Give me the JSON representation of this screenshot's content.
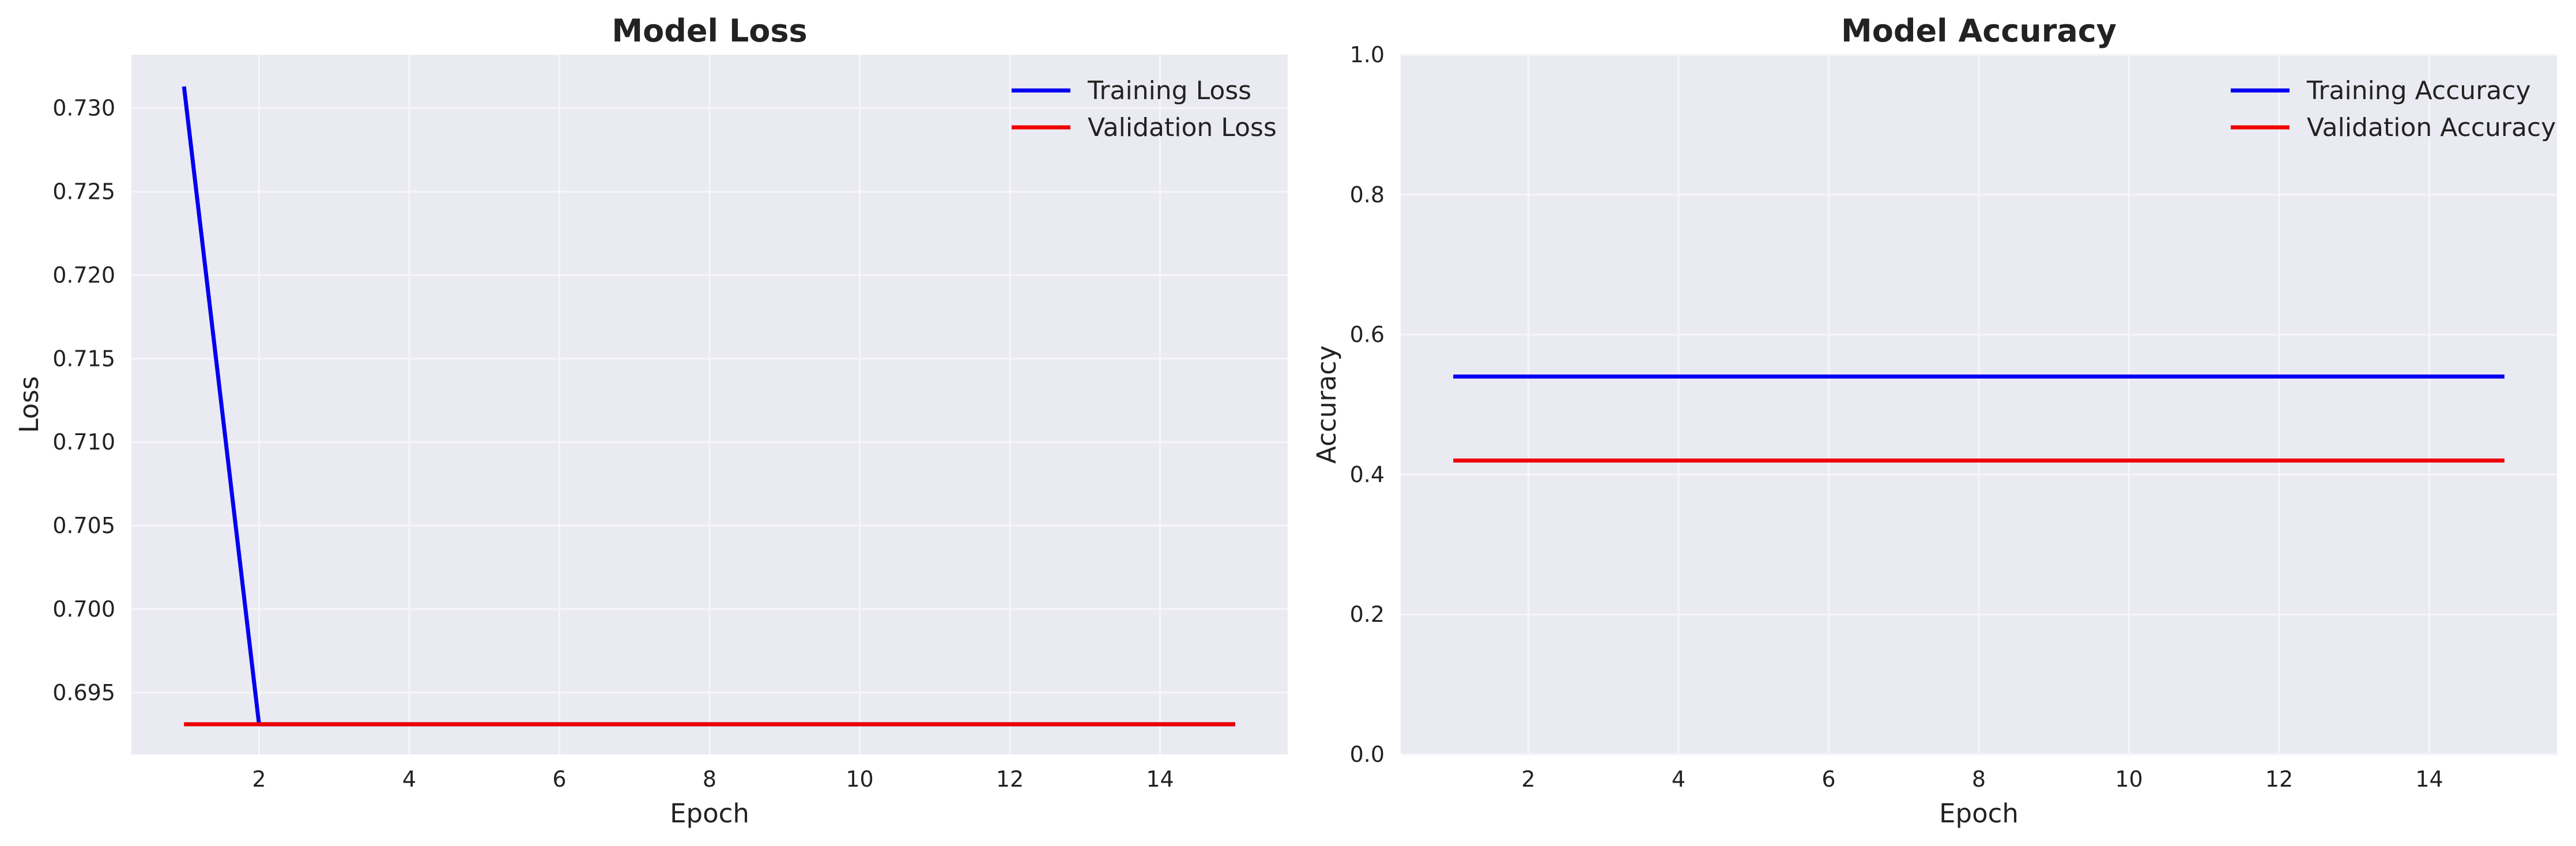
{
  "chart_data": [
    {
      "type": "line",
      "title": "Model Loss",
      "xlabel": "Epoch",
      "ylabel": "Loss",
      "x": [
        1,
        2,
        3,
        4,
        5,
        6,
        7,
        8,
        9,
        10,
        11,
        12,
        13,
        14,
        15
      ],
      "series": [
        {
          "name": "Training Loss",
          "color": "#0000ee",
          "values": [
            0.7313,
            0.6931,
            0.6931,
            0.6931,
            0.6931,
            0.6931,
            0.6931,
            0.6931,
            0.6931,
            0.6931,
            0.6931,
            0.6931,
            0.6931,
            0.6931,
            0.6931
          ]
        },
        {
          "name": "Validation Loss",
          "color": "#ee0000",
          "values": [
            0.6931,
            0.6931,
            0.6931,
            0.6931,
            0.6931,
            0.6931,
            0.6931,
            0.6931,
            0.6931,
            0.6931,
            0.6931,
            0.6931,
            0.6931,
            0.6931,
            0.6931
          ]
        }
      ],
      "xlim": [
        0.3,
        15.7
      ],
      "ylim": [
        0.6913,
        0.7332
      ],
      "xticks": [
        2,
        4,
        6,
        8,
        10,
        12,
        14
      ],
      "xtick_labels": [
        "2",
        "4",
        "6",
        "8",
        "10",
        "12",
        "14"
      ],
      "yticks": [
        0.695,
        0.7,
        0.705,
        0.71,
        0.715,
        0.72,
        0.725,
        0.73
      ],
      "ytick_labels": [
        "0.695",
        "0.700",
        "0.705",
        "0.710",
        "0.715",
        "0.720",
        "0.725",
        "0.730"
      ],
      "grid": true,
      "legend": "top-right"
    },
    {
      "type": "line",
      "title": "Model Accuracy",
      "xlabel": "Epoch",
      "ylabel": "Accuracy",
      "x": [
        1,
        2,
        3,
        4,
        5,
        6,
        7,
        8,
        9,
        10,
        11,
        12,
        13,
        14,
        15
      ],
      "series": [
        {
          "name": "Training Accuracy",
          "color": "#0000ee",
          "values": [
            0.54,
            0.54,
            0.54,
            0.54,
            0.54,
            0.54,
            0.54,
            0.54,
            0.54,
            0.54,
            0.54,
            0.54,
            0.54,
            0.54,
            0.54
          ]
        },
        {
          "name": "Validation Accuracy",
          "color": "#ee0000",
          "values": [
            0.42,
            0.42,
            0.42,
            0.42,
            0.42,
            0.42,
            0.42,
            0.42,
            0.42,
            0.42,
            0.42,
            0.42,
            0.42,
            0.42,
            0.42
          ]
        }
      ],
      "xlim": [
        0.3,
        15.7
      ],
      "ylim": [
        0.0,
        1.0
      ],
      "xticks": [
        2,
        4,
        6,
        8,
        10,
        12,
        14
      ],
      "xtick_labels": [
        "2",
        "4",
        "6",
        "8",
        "10",
        "12",
        "14"
      ],
      "yticks": [
        0.0,
        0.2,
        0.4,
        0.6,
        0.8,
        1.0
      ],
      "ytick_labels": [
        "0.0",
        "0.2",
        "0.4",
        "0.6",
        "0.8",
        "1.0"
      ],
      "grid": true,
      "legend": "top-right"
    }
  ],
  "colors": {
    "plot_background": "#eaeaf2",
    "grid": "#f6f6fa"
  }
}
